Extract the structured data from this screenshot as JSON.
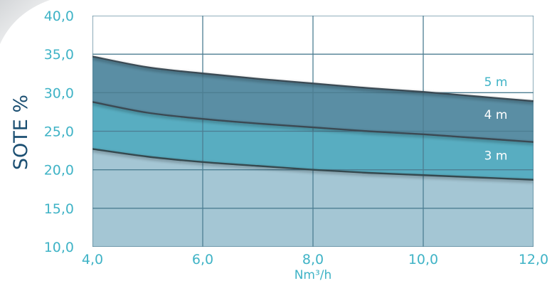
{
  "chart_data": {
    "type": "area",
    "title": "",
    "xlabel": "Nm³/h",
    "ylabel": "SOTE %",
    "xlim": [
      4.0,
      12.0
    ],
    "ylim": [
      10.0,
      40.0
    ],
    "x_ticks": [
      "4,0",
      "6,0",
      "8,0",
      "10,0",
      "12,0"
    ],
    "y_ticks": [
      "10,0",
      "15,0",
      "20,0",
      "25,0",
      "30,0",
      "35,0",
      "40,0"
    ],
    "grid": true,
    "x": [
      4.0,
      5.0,
      6.0,
      7.0,
      8.0,
      9.0,
      10.0,
      11.0,
      12.0
    ],
    "series": [
      {
        "name": "3 m",
        "values": [
          22.7,
          21.7,
          21.0,
          20.5,
          20.0,
          19.6,
          19.3,
          19.0,
          18.7
        ]
      },
      {
        "name": "4 m",
        "values": [
          28.8,
          27.4,
          26.6,
          26.0,
          25.5,
          25.0,
          24.6,
          24.1,
          23.6
        ]
      },
      {
        "name": "5 m",
        "values": [
          34.7,
          33.3,
          32.5,
          31.8,
          31.2,
          30.6,
          30.1,
          29.5,
          28.9
        ]
      }
    ],
    "colors": {
      "base": "#a4c6d4",
      "band_3m": "#58adc1",
      "band_4m": "#5a8ea4",
      "line_3m": "#35494f",
      "line_4m": "#3a4a52",
      "line_5m": "#3b4b55",
      "grid": "#4d7e92",
      "label_5m": "#3fb3c6",
      "label_inside": "#ffffff",
      "tick": "#3fb3c6",
      "ylabel": "#1b4f72"
    }
  }
}
